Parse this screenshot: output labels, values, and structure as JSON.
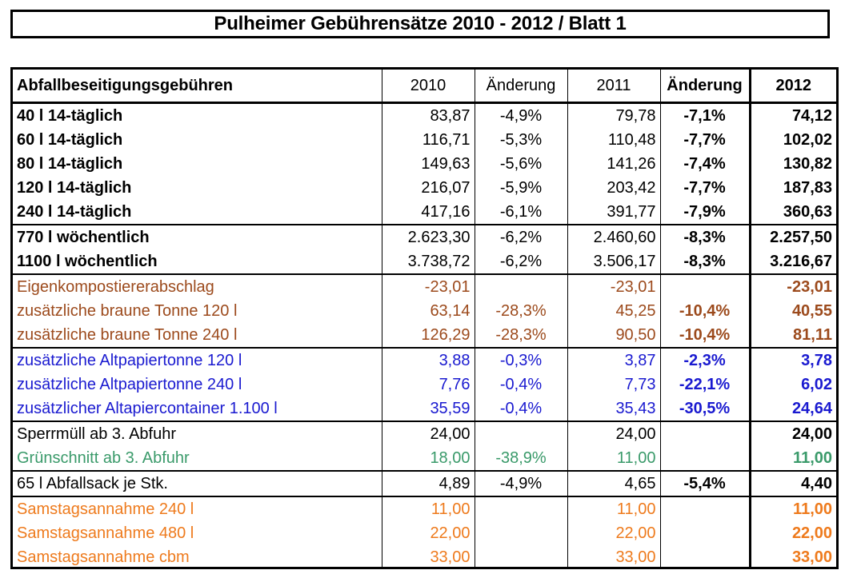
{
  "title": "Pulheimer Gebührensätze 2010 - 2012 / Blatt 1",
  "headers": {
    "label": "Abfallbeseitigungsgebühren",
    "y2010": "2010",
    "chg1": "Änderung",
    "y2011": "2011",
    "chg2": "Änderung",
    "y2012": "2012"
  },
  "colors": {
    "black": "#000000",
    "brown": "#9c4a1c",
    "blue": "#1a1ad0",
    "green": "#3a9a6a",
    "orange": "#ee7a1c"
  },
  "rows": [
    {
      "label": "40 l 14-täglich",
      "v2010": "83,87",
      "chg1": "-4,9%",
      "v2011": "79,78",
      "chg2": "-7,1%",
      "v2012": "74,12"
    },
    {
      "label": "60 l 14-täglich",
      "v2010": "116,71",
      "chg1": "-5,3%",
      "v2011": "110,48",
      "chg2": "-7,7%",
      "v2012": "102,02"
    },
    {
      "label": "80 l 14-täglich",
      "v2010": "149,63",
      "chg1": "-5,6%",
      "v2011": "141,26",
      "chg2": "-7,4%",
      "v2012": "130,82"
    },
    {
      "label": "120 l 14-täglich",
      "v2010": "216,07",
      "chg1": "-5,9%",
      "v2011": "203,42",
      "chg2": "-7,7%",
      "v2012": "187,83"
    },
    {
      "label": "240 l 14-täglich",
      "v2010": "417,16",
      "chg1": "-6,1%",
      "v2011": "391,77",
      "chg2": "-7,9%",
      "v2012": "360,63"
    },
    {
      "label": "770 l wöchentlich",
      "v2010": "2.623,30",
      "chg1": "-6,2%",
      "v2011": "2.460,60",
      "chg2": "-8,3%",
      "v2012": "2.257,50"
    },
    {
      "label": "1100 l wöchentlich",
      "v2010": "3.738,72",
      "chg1": "-6,2%",
      "v2011": "3.506,17",
      "chg2": "-8,3%",
      "v2012": "3.216,67"
    },
    {
      "label": "Eigenkompostiererabschlag",
      "v2010": "-23,01",
      "chg1": "",
      "v2011": "-23,01",
      "chg2": "",
      "v2012": "-23,01"
    },
    {
      "label": "zusätzliche braune Tonne 120 l",
      "v2010": "63,14",
      "chg1": "-28,3%",
      "v2011": "45,25",
      "chg2": "-10,4%",
      "v2012": "40,55"
    },
    {
      "label": "zusätzliche braune Tonne 240 l",
      "v2010": "126,29",
      "chg1": "-28,3%",
      "v2011": "90,50",
      "chg2": "-10,4%",
      "v2012": "81,11"
    },
    {
      "label": "zusätzliche Altpapiertonne 120 l",
      "v2010": "3,88",
      "chg1": "-0,3%",
      "v2011": "3,87",
      "chg2": "-2,3%",
      "v2012": "3,78"
    },
    {
      "label": "zusätzliche Altpapiertonne 240 l",
      "v2010": "7,76",
      "chg1": "-0,4%",
      "v2011": "7,73",
      "chg2": "-22,1%",
      "v2012": "6,02"
    },
    {
      "label": "zusätzlicher Altapiercontainer 1.100 l",
      "v2010": "35,59",
      "chg1": "-0,4%",
      "v2011": "35,43",
      "chg2": "-30,5%",
      "v2012": "24,64"
    },
    {
      "label": "Sperrmüll ab 3. Abfuhr",
      "v2010": "24,00",
      "chg1": "",
      "v2011": "24,00",
      "chg2": "",
      "v2012": "24,00"
    },
    {
      "label": "Grünschnitt ab 3. Abfuhr",
      "v2010": "18,00",
      "chg1": "-38,9%",
      "v2011": "11,00",
      "chg2": "",
      "v2012": "11,00"
    },
    {
      "label": "65 l Abfallsack je Stk.",
      "v2010": "4,89",
      "chg1": "-4,9%",
      "v2011": "4,65",
      "chg2": "-5,4%",
      "v2012": "4,40"
    },
    {
      "label": "Samstagsannahme 240 l",
      "v2010": "11,00",
      "chg1": "",
      "v2011": "11,00",
      "chg2": "",
      "v2012": "11,00"
    },
    {
      "label": "Samstagsannahme 480 l",
      "v2010": "22,00",
      "chg1": "",
      "v2011": "22,00",
      "chg2": "",
      "v2012": "22,00"
    },
    {
      "label": "Samstagsannahme cbm",
      "v2010": "33,00",
      "chg1": "",
      "v2011": "33,00",
      "chg2": "",
      "v2012": "33,00"
    }
  ]
}
